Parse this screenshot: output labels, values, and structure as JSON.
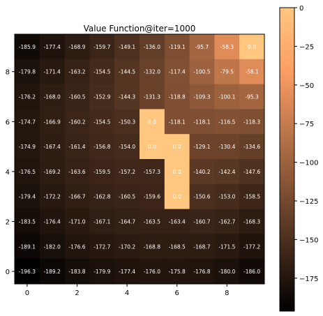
{
  "chart_data": {
    "type": "heatmap",
    "title": "Value Function@iter=1000",
    "xlabel": "",
    "ylabel": "",
    "x_ticks": [
      0,
      2,
      4,
      6,
      8
    ],
    "y_ticks": [
      0,
      2,
      4,
      6,
      8
    ],
    "origin": "lower",
    "grid_size": [
      10,
      10
    ],
    "colormap": "copper",
    "vmin": -196.3,
    "vmax": 0,
    "colorbar_ticks": [
      0,
      -25,
      -50,
      -75,
      -100,
      -125,
      -150,
      -175
    ],
    "rows_top_to_bottom": [
      [
        "-185.9",
        "-177.4",
        "-168.9",
        "-159.7",
        "-149.1",
        "-136.0",
        "-119.1",
        "-95.7",
        "-58.3",
        "0.0"
      ],
      [
        "-179.8",
        "-171.4",
        "-163.2",
        "-154.5",
        "-144.5",
        "-132.0",
        "-117.4",
        "-100.5",
        "-79.5",
        "-58.1"
      ],
      [
        "-176.2",
        "-168.0",
        "-160.5",
        "-152.9",
        "-144.3",
        "-131.3",
        "-118.8",
        "-109.3",
        "-100.1",
        "-95.3"
      ],
      [
        "-174.7",
        "-166.9",
        "-160.2",
        "-154.5",
        "-150.3",
        "0.0",
        "-118.1",
        "-118.1",
        "-116.5",
        "-118.3"
      ],
      [
        "-174.9",
        "-167.4",
        "-161.4",
        "-156.8",
        "-154.0",
        "0.0",
        "0.0",
        "-129.1",
        "-130.4",
        "-134.6"
      ],
      [
        "-176.5",
        "-169.2",
        "-163.6",
        "-159.5",
        "-157.2",
        "-157.3",
        "0.0",
        "-140.2",
        "-142.4",
        "-147.6"
      ],
      [
        "-179.4",
        "-172.2",
        "-166.7",
        "-162.8",
        "-160.5",
        "-159.6",
        "0.0",
        "-150.6",
        "-153.0",
        "-158.5"
      ],
      [
        "-183.5",
        "-176.4",
        "-171.0",
        "-167.1",
        "-164.7",
        "-163.5",
        "-163.4",
        "-160.7",
        "-162.7",
        "-168.3"
      ],
      [
        "-189.1",
        "-182.0",
        "-176.6",
        "-172.7",
        "-170.2",
        "-168.8",
        "-168.5",
        "-168.7",
        "-171.5",
        "-177.2"
      ],
      [
        "-196.3",
        "-189.2",
        "-183.8",
        "-179.9",
        "-177.4",
        "-176.0",
        "-175.8",
        "-176.8",
        "-180.0",
        "-186.0"
      ]
    ]
  }
}
